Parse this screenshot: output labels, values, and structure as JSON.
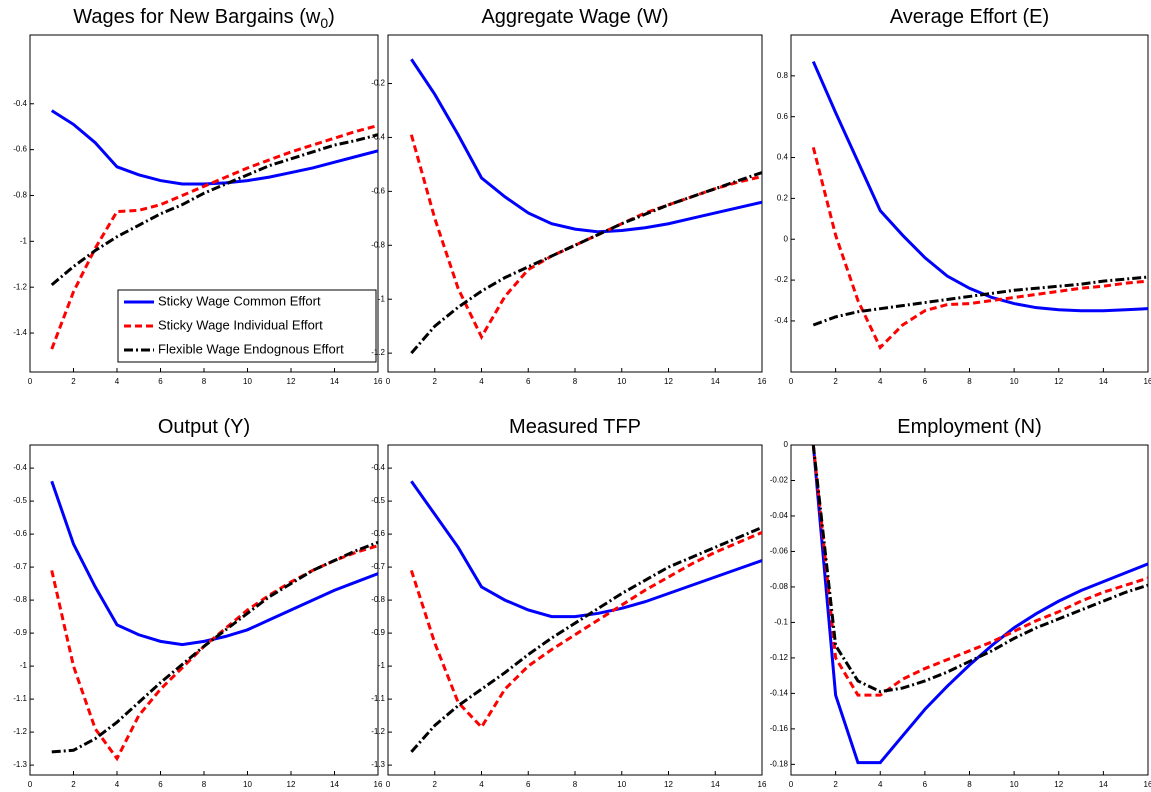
{
  "chart_data": [
    {
      "type": "line",
      "title": "Wages for New Bargains (w",
      "title_sub": "0",
      "title_after": ")",
      "legend": "lower right",
      "x": [
        1,
        2,
        3,
        4,
        5,
        6,
        7,
        8,
        9,
        10,
        11,
        12,
        13,
        14,
        15,
        16
      ],
      "xlim": [
        0,
        16
      ],
      "xticks": [
        0,
        2,
        4,
        6,
        8,
        10,
        12,
        14,
        16
      ],
      "ylim": [
        -1.57,
        -0.1
      ],
      "yticks": [
        -1.4,
        -1.2,
        -1,
        -0.8,
        -0.6,
        -0.4
      ],
      "series": [
        {
          "name": "Sticky Wage Common Effort",
          "color": "#0000ff",
          "values": [
            -0.43,
            -0.49,
            -0.57,
            -0.675,
            -0.71,
            -0.735,
            -0.75,
            -0.75,
            -0.745,
            -0.735,
            -0.72,
            -0.7,
            -0.68,
            -0.655,
            -0.63,
            -0.605
          ]
        },
        {
          "name": "Sticky Wage Individual Effort",
          "color": "#ff0000",
          "values": [
            -1.47,
            -1.22,
            -1.03,
            -0.87,
            -0.865,
            -0.84,
            -0.8,
            -0.76,
            -0.72,
            -0.68,
            -0.645,
            -0.61,
            -0.58,
            -0.55,
            -0.52,
            -0.495
          ]
        },
        {
          "name": "Flexible Wage Endognous Effort",
          "color": "#000000",
          "values": [
            -1.19,
            -1.11,
            -1.04,
            -0.98,
            -0.93,
            -0.88,
            -0.84,
            -0.79,
            -0.75,
            -0.71,
            -0.67,
            -0.64,
            -0.61,
            -0.58,
            -0.56,
            -0.535
          ]
        }
      ]
    },
    {
      "type": "line",
      "title": "Aggregate Wage (W)",
      "x": [
        1,
        2,
        3,
        4,
        5,
        6,
        7,
        8,
        9,
        10,
        11,
        12,
        13,
        14,
        15,
        16
      ],
      "xlim": [
        0,
        16
      ],
      "xticks": [
        0,
        2,
        4,
        6,
        8,
        10,
        12,
        14,
        16
      ],
      "ylim": [
        -1.27,
        -0.02
      ],
      "yticks": [
        -1.2,
        -1,
        -0.8,
        -0.6,
        -0.4,
        -0.2
      ],
      "series": [
        {
          "name": "Sticky Wage Common Effort",
          "color": "#0000ff",
          "values": [
            -0.11,
            -0.24,
            -0.39,
            -0.55,
            -0.62,
            -0.68,
            -0.72,
            -0.74,
            -0.75,
            -0.745,
            -0.735,
            -0.72,
            -0.7,
            -0.68,
            -0.66,
            -0.64
          ]
        },
        {
          "name": "Sticky Wage Individual Effort",
          "color": "#ff0000",
          "values": [
            -0.39,
            -0.7,
            -0.96,
            -1.14,
            -0.99,
            -0.89,
            -0.84,
            -0.8,
            -0.76,
            -0.72,
            -0.68,
            -0.65,
            -0.62,
            -0.59,
            -0.565,
            -0.545
          ]
        },
        {
          "name": "Flexible Wage Endognous Effort",
          "color": "#000000",
          "values": [
            -1.2,
            -1.1,
            -1.03,
            -0.97,
            -0.92,
            -0.88,
            -0.84,
            -0.8,
            -0.76,
            -0.72,
            -0.685,
            -0.65,
            -0.62,
            -0.59,
            -0.56,
            -0.53
          ]
        }
      ]
    },
    {
      "type": "line",
      "title": "Average Effort (E)",
      "x": [
        1,
        2,
        3,
        4,
        5,
        6,
        7,
        8,
        9,
        10,
        11,
        12,
        13,
        14,
        15,
        16
      ],
      "xlim": [
        0,
        16
      ],
      "xticks": [
        0,
        2,
        4,
        6,
        8,
        10,
        12,
        14,
        16
      ],
      "ylim": [
        -0.65,
        1.0
      ],
      "yticks": [
        -0.4,
        -0.2,
        0,
        0.2,
        0.4,
        0.6,
        0.8
      ],
      "series": [
        {
          "name": "Sticky Wage Common Effort",
          "color": "#0000ff",
          "values": [
            0.87,
            0.62,
            0.38,
            0.14,
            0.02,
            -0.09,
            -0.18,
            -0.24,
            -0.285,
            -0.315,
            -0.335,
            -0.345,
            -0.35,
            -0.35,
            -0.345,
            -0.34
          ]
        },
        {
          "name": "Sticky Wage Individual Effort",
          "color": "#ff0000",
          "values": [
            0.45,
            0.02,
            -0.3,
            -0.53,
            -0.42,
            -0.35,
            -0.32,
            -0.315,
            -0.3,
            -0.285,
            -0.27,
            -0.255,
            -0.24,
            -0.23,
            -0.215,
            -0.205
          ]
        },
        {
          "name": "Flexible Wage Endognous Effort",
          "color": "#000000",
          "values": [
            -0.42,
            -0.38,
            -0.355,
            -0.34,
            -0.325,
            -0.31,
            -0.295,
            -0.28,
            -0.265,
            -0.25,
            -0.24,
            -0.23,
            -0.22,
            -0.205,
            -0.195,
            -0.185
          ]
        }
      ]
    },
    {
      "type": "line",
      "title": "Output (Y)",
      "x": [
        1,
        2,
        3,
        4,
        5,
        6,
        7,
        8,
        9,
        10,
        11,
        12,
        13,
        14,
        15,
        16
      ],
      "xlim": [
        0,
        16
      ],
      "xticks": [
        0,
        2,
        4,
        6,
        8,
        10,
        12,
        14,
        16
      ],
      "ylim": [
        -1.33,
        -0.33
      ],
      "yticks": [
        -1.3,
        -1.2,
        -1.1,
        -1,
        -0.9,
        -0.8,
        -0.7,
        -0.6,
        -0.5,
        -0.4
      ],
      "series": [
        {
          "name": "Sticky Wage Common Effort",
          "color": "#0000ff",
          "values": [
            -0.44,
            -0.63,
            -0.76,
            -0.875,
            -0.905,
            -0.925,
            -0.935,
            -0.925,
            -0.91,
            -0.89,
            -0.86,
            -0.83,
            -0.8,
            -0.77,
            -0.745,
            -0.72
          ]
        },
        {
          "name": "Sticky Wage Individual Effort",
          "color": "#ff0000",
          "values": [
            -0.71,
            -1.0,
            -1.19,
            -1.28,
            -1.15,
            -1.07,
            -1.005,
            -0.94,
            -0.885,
            -0.83,
            -0.785,
            -0.745,
            -0.71,
            -0.68,
            -0.655,
            -0.635
          ]
        },
        {
          "name": "Flexible Wage Endognous Effort",
          "color": "#000000",
          "values": [
            -1.26,
            -1.255,
            -1.22,
            -1.17,
            -1.11,
            -1.05,
            -0.995,
            -0.94,
            -0.89,
            -0.84,
            -0.79,
            -0.75,
            -0.71,
            -0.68,
            -0.65,
            -0.625
          ]
        }
      ]
    },
    {
      "type": "line",
      "title": "Measured TFP",
      "x": [
        1,
        2,
        3,
        4,
        5,
        6,
        7,
        8,
        9,
        10,
        11,
        12,
        13,
        14,
        15,
        16
      ],
      "xlim": [
        0,
        16
      ],
      "xticks": [
        0,
        2,
        4,
        6,
        8,
        10,
        12,
        14,
        16
      ],
      "ylim": [
        -1.33,
        -0.33
      ],
      "yticks": [
        -1.3,
        -1.2,
        -1.1,
        -1,
        -0.9,
        -0.8,
        -0.7,
        -0.6,
        -0.5,
        -0.4
      ],
      "series": [
        {
          "name": "Sticky Wage Common Effort",
          "color": "#0000ff",
          "values": [
            -0.44,
            -0.54,
            -0.64,
            -0.76,
            -0.8,
            -0.83,
            -0.85,
            -0.85,
            -0.84,
            -0.825,
            -0.805,
            -0.78,
            -0.755,
            -0.73,
            -0.705,
            -0.68
          ]
        },
        {
          "name": "Sticky Wage Individual Effort",
          "color": "#ff0000",
          "values": [
            -0.71,
            -0.93,
            -1.11,
            -1.185,
            -1.07,
            -1.0,
            -0.95,
            -0.905,
            -0.86,
            -0.815,
            -0.77,
            -0.73,
            -0.69,
            -0.655,
            -0.625,
            -0.595
          ]
        },
        {
          "name": "Flexible Wage Endognous Effort",
          "color": "#000000",
          "values": [
            -1.26,
            -1.18,
            -1.12,
            -1.07,
            -1.02,
            -0.965,
            -0.915,
            -0.87,
            -0.825,
            -0.78,
            -0.74,
            -0.7,
            -0.67,
            -0.64,
            -0.61,
            -0.58
          ]
        }
      ]
    },
    {
      "type": "line",
      "title": "Employment (N)",
      "x": [
        1,
        2,
        3,
        4,
        5,
        6,
        7,
        8,
        9,
        10,
        11,
        12,
        13,
        14,
        15,
        16
      ],
      "xlim": [
        0,
        16
      ],
      "xticks": [
        0,
        2,
        4,
        6,
        8,
        10,
        12,
        14,
        16
      ],
      "ylim": [
        -0.186,
        0
      ],
      "yticks": [
        -0.18,
        -0.16,
        -0.14,
        -0.12,
        -0.1,
        -0.08,
        -0.06,
        -0.04,
        -0.02,
        0
      ],
      "series": [
        {
          "name": "Sticky Wage Common Effort",
          "color": "#0000ff",
          "values": [
            0,
            -0.141,
            -0.179,
            -0.179,
            -0.164,
            -0.149,
            -0.136,
            -0.124,
            -0.113,
            -0.103,
            -0.095,
            -0.088,
            -0.082,
            -0.077,
            -0.072,
            -0.067
          ]
        },
        {
          "name": "Sticky Wage Individual Effort",
          "color": "#ff0000",
          "values": [
            0,
            -0.12,
            -0.141,
            -0.141,
            -0.132,
            -0.126,
            -0.121,
            -0.116,
            -0.111,
            -0.105,
            -0.099,
            -0.094,
            -0.088,
            -0.083,
            -0.079,
            -0.075
          ]
        },
        {
          "name": "Flexible Wage Endognous Effort",
          "color": "#000000",
          "values": [
            0,
            -0.113,
            -0.133,
            -0.139,
            -0.137,
            -0.133,
            -0.128,
            -0.122,
            -0.116,
            -0.109,
            -0.103,
            -0.098,
            -0.093,
            -0.088,
            -0.083,
            -0.079
          ]
        }
      ]
    }
  ]
}
